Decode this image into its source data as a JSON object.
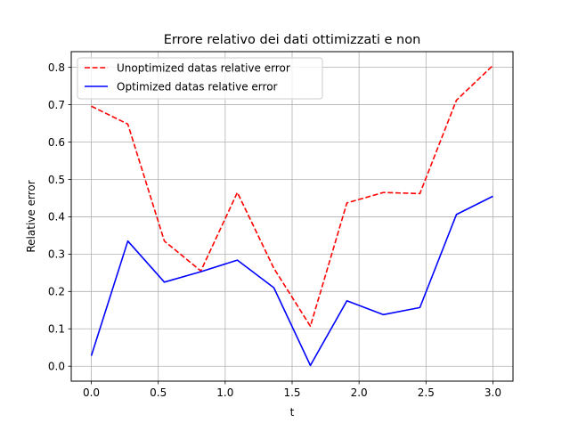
{
  "chart_data": {
    "type": "line",
    "title": "Errore relativo dei dati ottimizzati e non",
    "xlabel": "t",
    "ylabel": "Relative error",
    "xlim": [
      -0.15,
      3.15
    ],
    "ylim": [
      -0.04,
      0.842
    ],
    "x_ticks": [
      0.0,
      0.5,
      1.0,
      1.5,
      2.0,
      2.5,
      3.0
    ],
    "x_tick_labels": [
      "0.0",
      "0.5",
      "1.0",
      "1.5",
      "2.0",
      "2.5",
      "3.0"
    ],
    "y_ticks": [
      0.0,
      0.1,
      0.2,
      0.3,
      0.4,
      0.5,
      0.6,
      0.7,
      0.8
    ],
    "y_tick_labels": [
      "0.0",
      "0.1",
      "0.2",
      "0.3",
      "0.4",
      "0.5",
      "0.6",
      "0.7",
      "0.8"
    ],
    "grid": true,
    "legend_position": "upper-left",
    "x": [
      0.0,
      0.2727,
      0.5455,
      0.8182,
      1.0909,
      1.3636,
      1.6364,
      1.9091,
      2.1818,
      2.4545,
      2.7273,
      3.0
    ],
    "series": [
      {
        "name": "Unoptimized datas relative error",
        "color": "#ff0000",
        "dash": "dashed",
        "values": [
          0.696,
          0.648,
          0.335,
          0.255,
          0.465,
          0.262,
          0.107,
          0.437,
          0.465,
          0.462,
          0.712,
          0.805
        ]
      },
      {
        "name": "Optimized datas relative error",
        "color": "#0000ff",
        "dash": "solid",
        "values": [
          0.028,
          0.335,
          0.225,
          0.253,
          0.284,
          0.21,
          0.002,
          0.175,
          0.138,
          0.157,
          0.406,
          0.455
        ]
      }
    ]
  }
}
